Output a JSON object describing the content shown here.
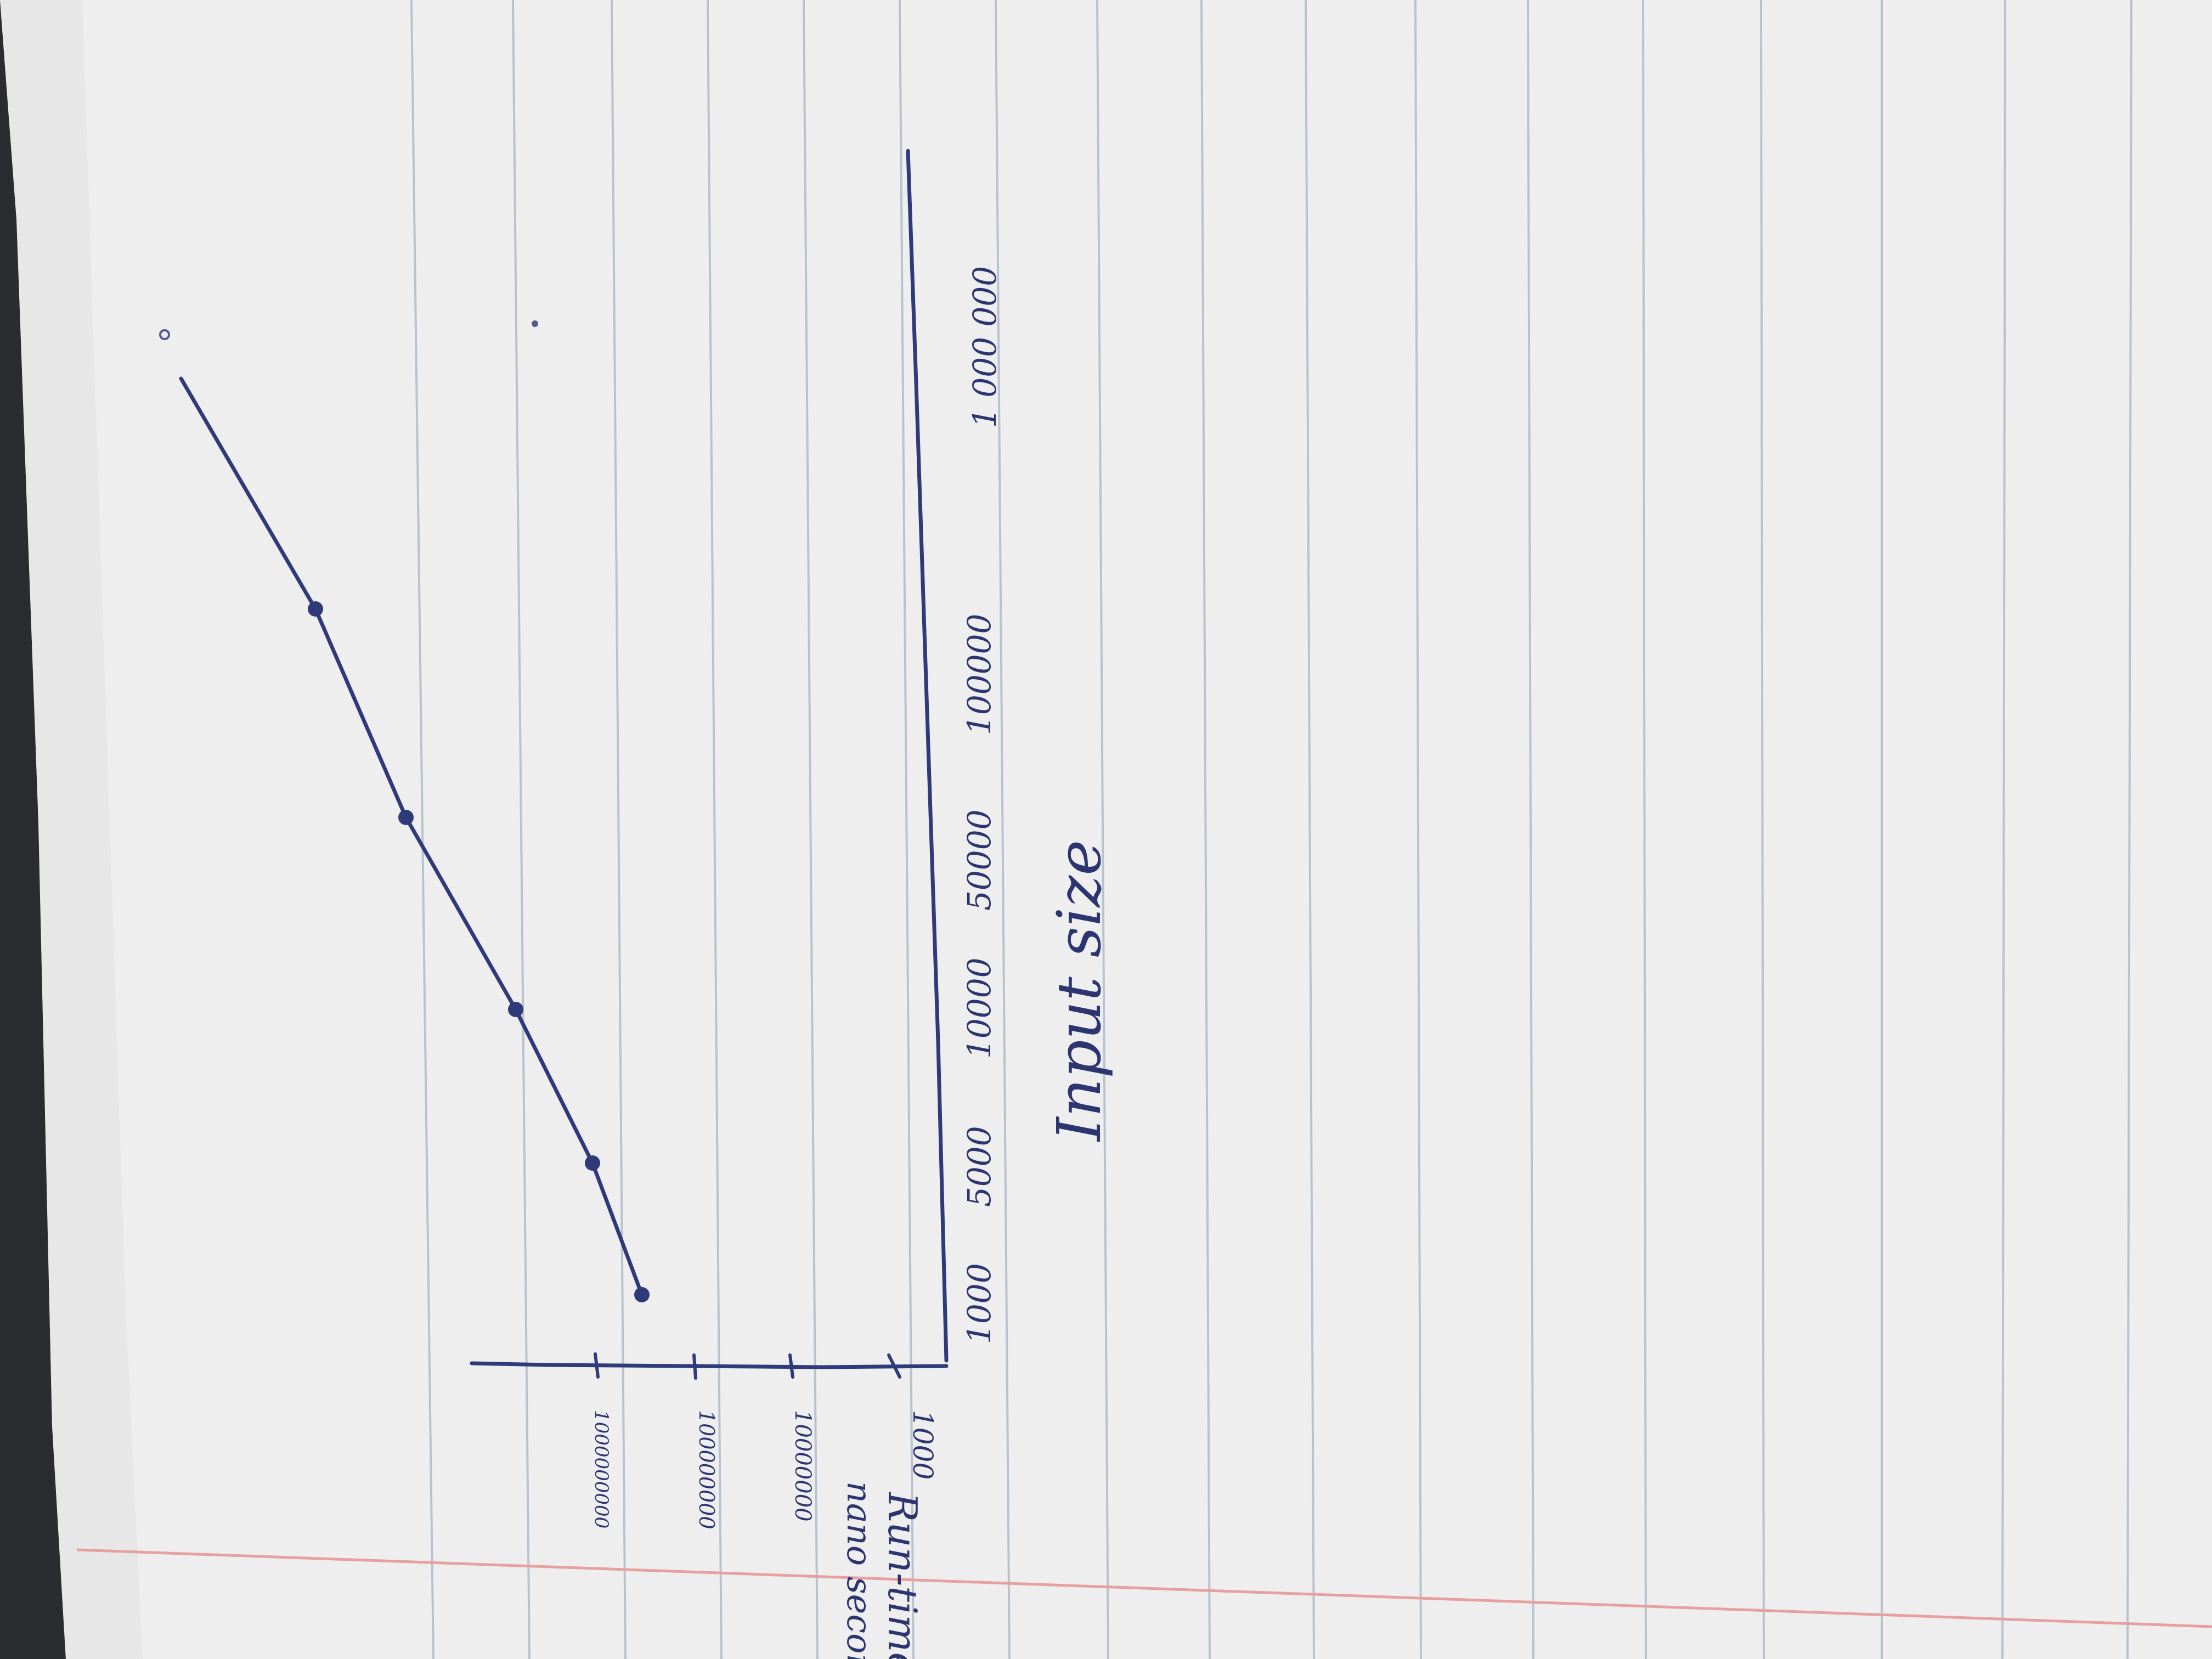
{
  "photo": {
    "subject": "handwritten graph on ruled notebook paper",
    "paper_color": "#eeeeee",
    "rule_color": "#b9c2cf",
    "margin_color": "#e6a0a0",
    "ink_color": "#2f3a7a",
    "background_color": "#2a2c30"
  },
  "labels": {
    "y_axis_line1": "Run-time in",
    "y_axis_line2": "nano seconds,",
    "x_axis": "Input size"
  },
  "chart_data": {
    "type": "line",
    "title": "",
    "xlabel": "Input size",
    "ylabel": "Run-time in nano seconds,",
    "categories": [
      "1000",
      "5000",
      "10000",
      "50000",
      "100000",
      "1 000 000"
    ],
    "y_ticks": [
      "1000",
      "10000000",
      "100000000",
      "1000000000"
    ],
    "series": [
      {
        "values": [
          1,
          2,
          3,
          4,
          5,
          6
        ]
      }
    ]
  }
}
